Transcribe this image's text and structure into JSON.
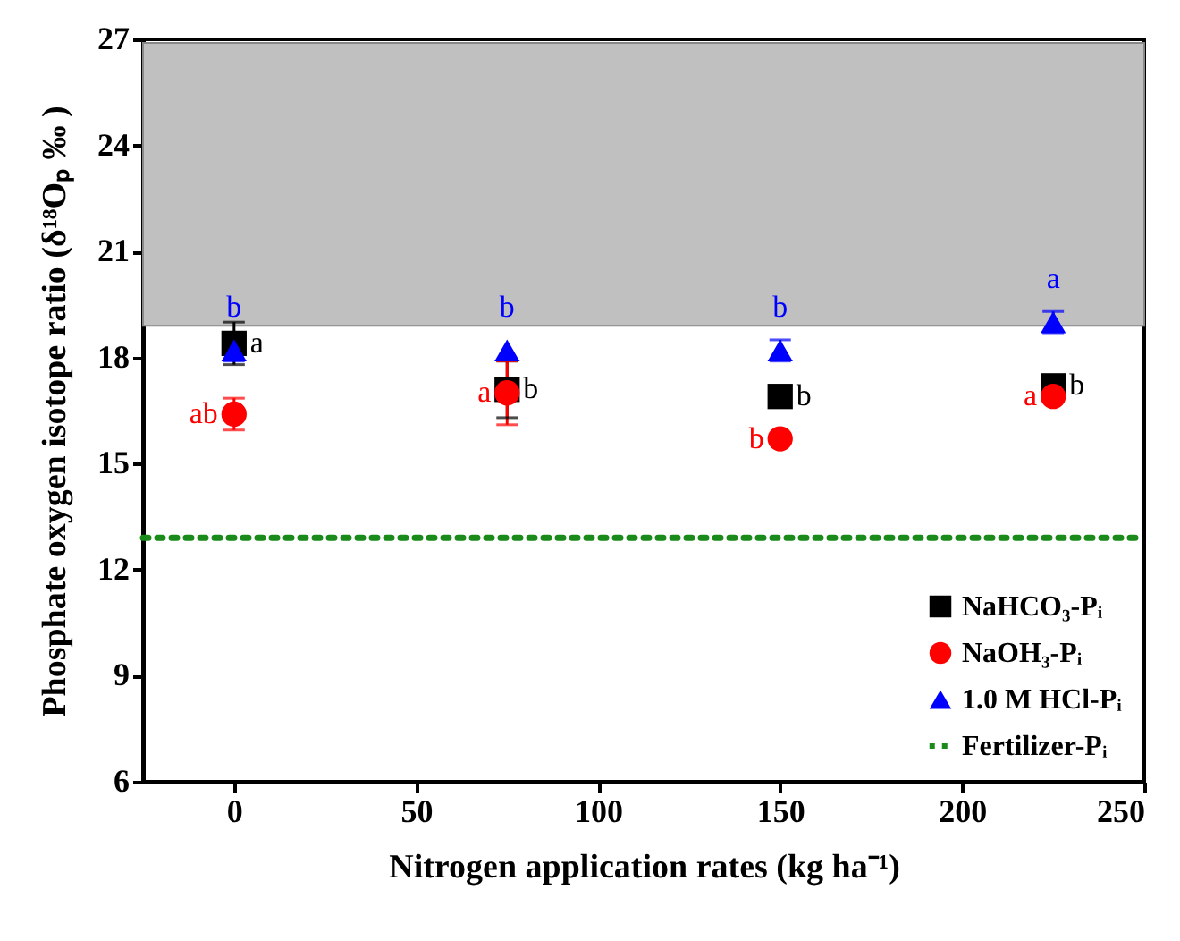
{
  "chart_data": {
    "type": "scatter",
    "xlabel": "Nitrogen application rates (kg ha⁻¹)",
    "ylabel": "Phosphate oxygen isotope ratio (δ¹⁸Oₚ ‰ )",
    "x": [
      0,
      75,
      150,
      225
    ],
    "series": [
      {
        "name": "NaHCO₃-Pᵢ",
        "color": "#000000",
        "marker": "square",
        "values": [
          18.4,
          17.1,
          16.9,
          17.2
        ],
        "errors": [
          0.6,
          0.8,
          null,
          null
        ],
        "value_labels": [
          "a",
          "b",
          "b",
          "b"
        ]
      },
      {
        "name": "NaOH₃-Pᵢ",
        "color": "#ff0000",
        "marker": "circle",
        "values": [
          16.4,
          17.0,
          15.7,
          16.9
        ],
        "errors": [
          0.45,
          0.9,
          null,
          null
        ],
        "value_labels": [
          "ab",
          "a",
          "b",
          "a"
        ]
      },
      {
        "name": "1.0 M HCl-Pᵢ",
        "color": "#0000ff",
        "marker": "triangle",
        "values": [
          18.2,
          18.2,
          18.2,
          19.0
        ],
        "errors": [
          0.3,
          null,
          0.3,
          0.3
        ],
        "value_labels": [
          "b",
          "b",
          "b",
          "a"
        ]
      }
    ],
    "ref_lines": [
      {
        "axis": "y",
        "value": 12.9,
        "label": "Fertilizer-Pᵢ",
        "color": "#1a8a1a",
        "line_style": "dotted"
      }
    ],
    "bands": [
      {
        "axis": "y",
        "from": 18.9,
        "to": 26.9,
        "color": "#c0c0c0"
      }
    ],
    "xlim": [
      -25,
      250
    ],
    "xticks": [
      0,
      50,
      100,
      150,
      200,
      250
    ],
    "ylim": [
      6,
      27
    ],
    "yticks": [
      6,
      9,
      12,
      15,
      18,
      21,
      24,
      27
    ],
    "grid": false,
    "legend": "bottom right"
  }
}
